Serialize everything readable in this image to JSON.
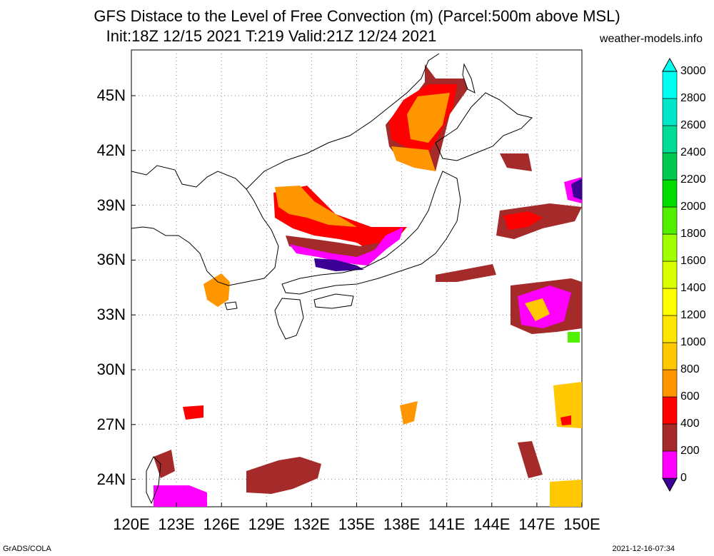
{
  "title_line1": "GFS Distace to the Level of Free Convection (m) (Parcel:500m above MSL)",
  "title_line2": "Init:18Z 12/15 2021 T:219 Valid:21Z 12/24 2021",
  "site": "weather-models.info",
  "footer_left": "GrADS/COLA",
  "footer_right": "2021-12-16-07:34",
  "map": {
    "lon_range": [
      120,
      150
    ],
    "lat_range": [
      22.5,
      47.5
    ],
    "lon_labels": [
      "120E",
      "123E",
      "126E",
      "129E",
      "132E",
      "135E",
      "138E",
      "141E",
      "144E",
      "147E",
      "150E"
    ],
    "lat_labels": [
      "24N",
      "27N",
      "30N",
      "33N",
      "36N",
      "39N",
      "42N",
      "45N"
    ]
  },
  "colorbar": {
    "labels": [
      "0",
      "200",
      "400",
      "600",
      "800",
      "1000",
      "1200",
      "1400",
      "1600",
      "1800",
      "2000",
      "2200",
      "2400",
      "2600",
      "2800",
      "3000"
    ],
    "colors": [
      "#3c0096",
      "#ff00ff",
      "#a52a2a",
      "#ff0000",
      "#ff9600",
      "#ffc800",
      "#ffe600",
      "#ffff00",
      "#dcff00",
      "#a0ff00",
      "#50f000",
      "#00dc00",
      "#00c850",
      "#00dc96",
      "#00e6c8",
      "#00fff0"
    ]
  }
}
